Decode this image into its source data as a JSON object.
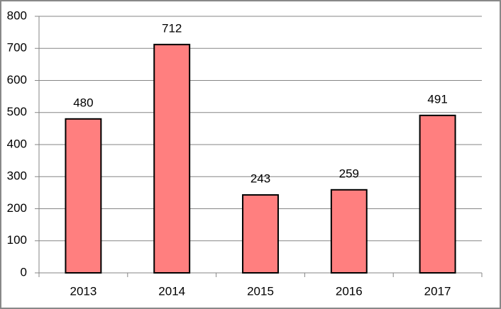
{
  "chart_data": {
    "type": "bar",
    "categories": [
      "2013",
      "2014",
      "2015",
      "2016",
      "2017"
    ],
    "values": [
      480,
      712,
      243,
      259,
      491
    ],
    "color": "#ff7f7f",
    "ylim": [
      0,
      800
    ],
    "yticks": [
      0,
      100,
      200,
      300,
      400,
      500,
      600,
      700,
      800
    ],
    "grid": true,
    "data_labels": true
  }
}
